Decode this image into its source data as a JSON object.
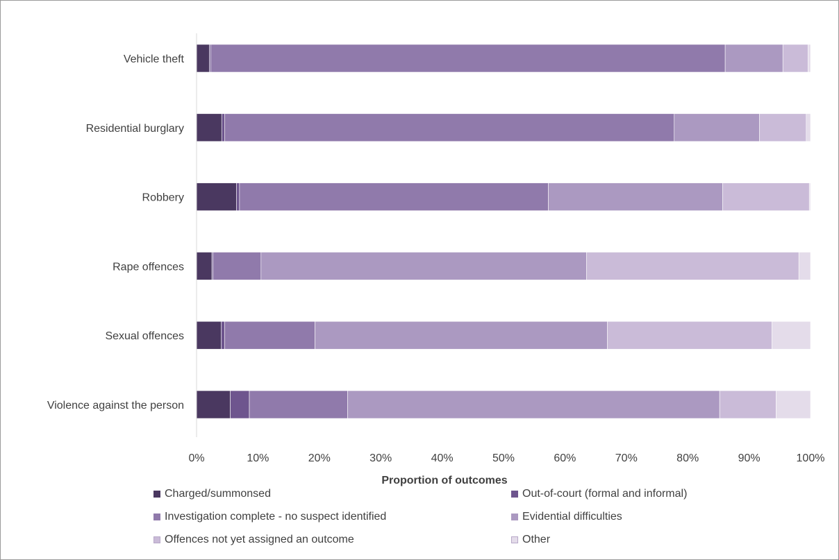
{
  "chart_data": {
    "type": "bar",
    "orientation": "horizontal",
    "stacked": true,
    "title": "",
    "xlabel": "Proportion of outcomes",
    "ylabel": "",
    "xlim": [
      0,
      100
    ],
    "x_ticks": [
      "0%",
      "10%",
      "20%",
      "30%",
      "40%",
      "50%",
      "60%",
      "70%",
      "80%",
      "90%",
      "100%"
    ],
    "categories": [
      "Vehicle theft",
      "Residential burglary",
      "Robbery",
      "Rape offences",
      "Sexual offences",
      "Violence against the person"
    ],
    "series": [
      {
        "name": "Charged/summonsed",
        "color": "#4a3860",
        "values": [
          2.1,
          4.1,
          6.5,
          2.5,
          4.0,
          5.5
        ]
      },
      {
        "name": "Out-of-court (formal and informal)",
        "color": "#6e558e",
        "values": [
          0.2,
          0.5,
          0.5,
          0.2,
          0.6,
          3.1
        ]
      },
      {
        "name": "Investigation complete - no suspect identified",
        "color": "#907aab",
        "values": [
          83.8,
          73.2,
          50.3,
          7.8,
          14.7,
          16.0
        ]
      },
      {
        "name": "Evidential difficulties",
        "color": "#ab99c1",
        "values": [
          9.4,
          13.9,
          28.4,
          53.0,
          47.6,
          60.6
        ]
      },
      {
        "name": "Offences not yet assigned an outcome",
        "color": "#cabbd8",
        "values": [
          4.1,
          7.6,
          14.1,
          34.6,
          26.8,
          9.2
        ]
      },
      {
        "name": "Other",
        "color": "#e4dcea",
        "values": [
          0.4,
          0.7,
          0.2,
          1.9,
          6.3,
          5.6
        ]
      }
    ],
    "grid": false,
    "legend_position": "bottom"
  }
}
